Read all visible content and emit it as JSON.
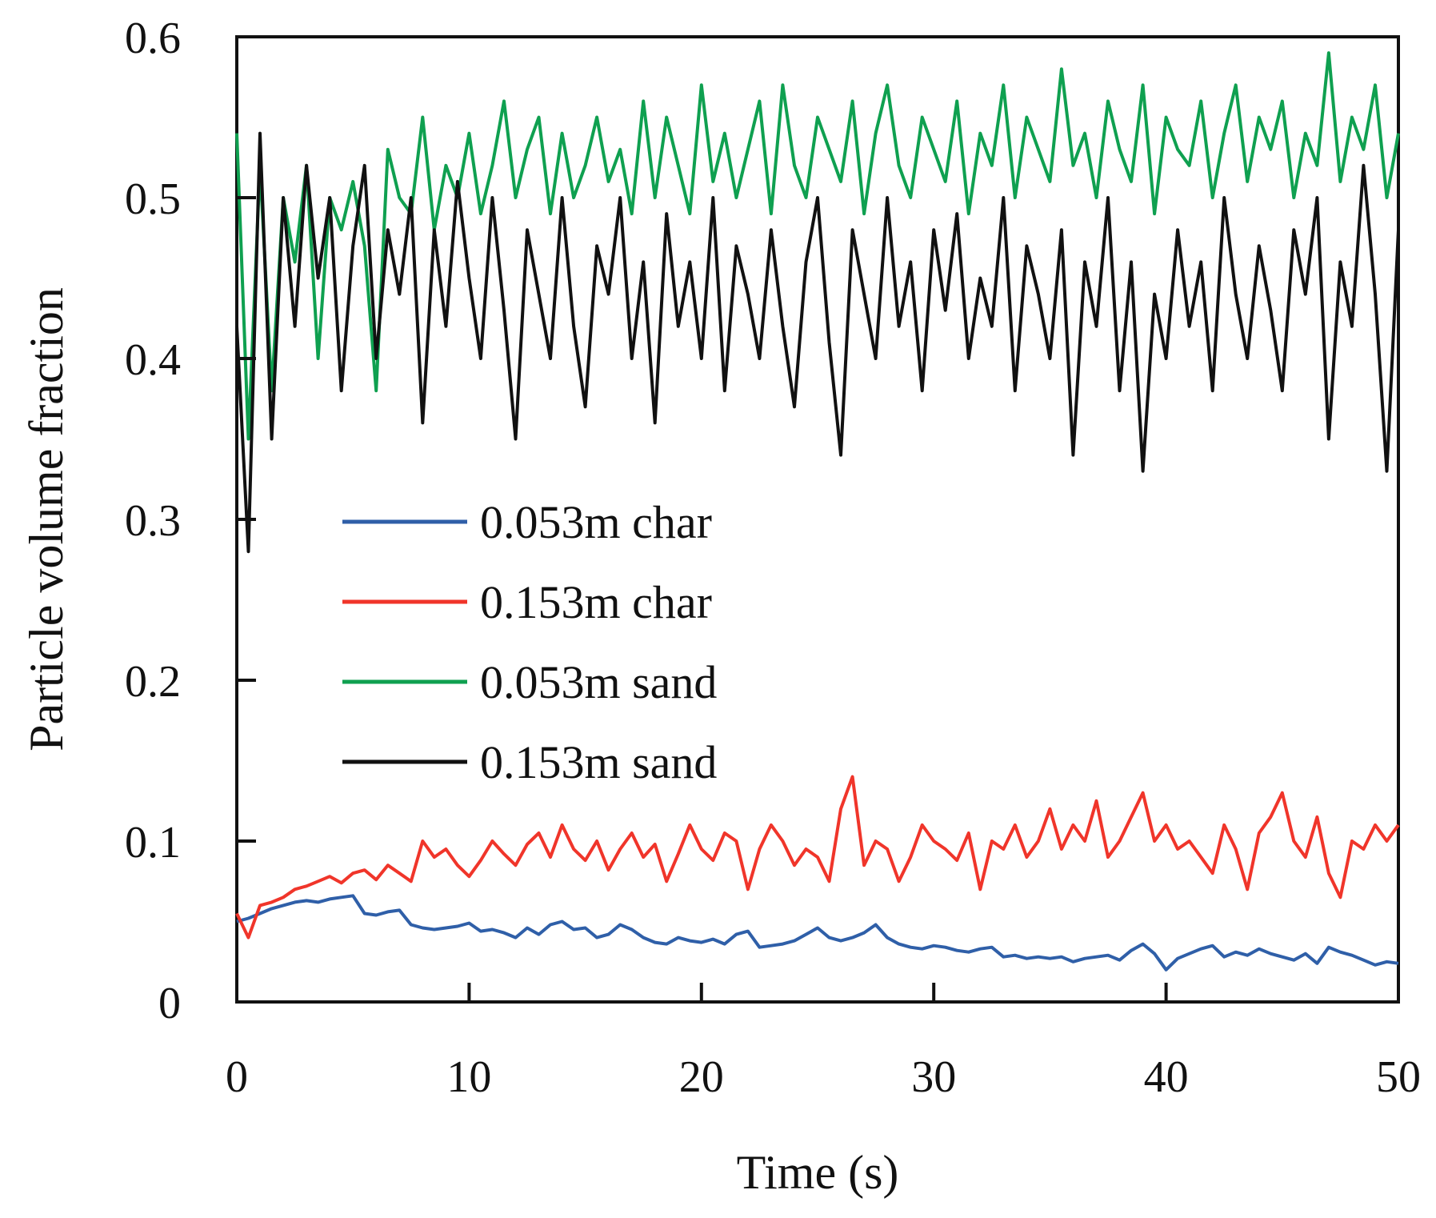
{
  "chart_data": {
    "type": "line",
    "xlabel": "Time (s)",
    "ylabel": "Particle volume fraction",
    "xlim": [
      0,
      50
    ],
    "ylim": [
      0,
      0.6
    ],
    "xticks": [
      "0",
      "10",
      "20",
      "30",
      "40",
      "50"
    ],
    "yticks": [
      "0",
      "0.1",
      "0.2",
      "0.3",
      "0.4",
      "0.5",
      "0.6"
    ],
    "grid": false,
    "legend_position": "center-left",
    "series": [
      {
        "name": "0.053m char",
        "color": "#2f5fa8",
        "x": [
          0,
          0.5,
          1,
          1.5,
          2,
          2.5,
          3,
          3.5,
          4,
          4.5,
          5,
          5.5,
          6,
          6.5,
          7,
          7.5,
          8,
          8.5,
          9,
          9.5,
          10,
          10.5,
          11,
          11.5,
          12,
          12.5,
          13,
          13.5,
          14,
          14.5,
          15,
          15.5,
          16,
          16.5,
          17,
          17.5,
          18,
          18.5,
          19,
          19.5,
          20,
          20.5,
          21,
          21.5,
          22,
          22.5,
          23,
          23.5,
          24,
          24.5,
          25,
          25.5,
          26,
          26.5,
          27,
          27.5,
          28,
          28.5,
          29,
          29.5,
          30,
          30.5,
          31,
          31.5,
          32,
          32.5,
          33,
          33.5,
          34,
          34.5,
          35,
          35.5,
          36,
          36.5,
          37,
          37.5,
          38,
          38.5,
          39,
          39.5,
          40,
          40.5,
          41,
          41.5,
          42,
          42.5,
          43,
          43.5,
          44,
          44.5,
          45,
          45.5,
          46,
          46.5,
          47,
          47.5,
          48,
          48.5,
          49,
          49.5,
          50
        ],
        "y": [
          0.05,
          0.052,
          0.055,
          0.058,
          0.06,
          0.062,
          0.063,
          0.062,
          0.064,
          0.065,
          0.066,
          0.055,
          0.054,
          0.056,
          0.057,
          0.048,
          0.046,
          0.045,
          0.046,
          0.047,
          0.049,
          0.044,
          0.045,
          0.043,
          0.04,
          0.046,
          0.042,
          0.048,
          0.05,
          0.045,
          0.046,
          0.04,
          0.042,
          0.048,
          0.045,
          0.04,
          0.037,
          0.036,
          0.04,
          0.038,
          0.037,
          0.039,
          0.036,
          0.042,
          0.044,
          0.034,
          0.035,
          0.036,
          0.038,
          0.042,
          0.046,
          0.04,
          0.038,
          0.04,
          0.043,
          0.048,
          0.04,
          0.036,
          0.034,
          0.033,
          0.035,
          0.034,
          0.032,
          0.031,
          0.033,
          0.034,
          0.028,
          0.029,
          0.027,
          0.028,
          0.027,
          0.028,
          0.025,
          0.027,
          0.028,
          0.029,
          0.026,
          0.032,
          0.036,
          0.03,
          0.02,
          0.027,
          0.03,
          0.033,
          0.035,
          0.028,
          0.031,
          0.029,
          0.033,
          0.03,
          0.028,
          0.026,
          0.03,
          0.024,
          0.034,
          0.031,
          0.029,
          0.026,
          0.023,
          0.025,
          0.024
        ]
      },
      {
        "name": "0.153m char",
        "color": "#f0352a",
        "x": [
          0,
          0.5,
          1,
          1.5,
          2,
          2.5,
          3,
          3.5,
          4,
          4.5,
          5,
          5.5,
          6,
          6.5,
          7,
          7.5,
          8,
          8.5,
          9,
          9.5,
          10,
          10.5,
          11,
          11.5,
          12,
          12.5,
          13,
          13.5,
          14,
          14.5,
          15,
          15.5,
          16,
          16.5,
          17,
          17.5,
          18,
          18.5,
          19,
          19.5,
          20,
          20.5,
          21,
          21.5,
          22,
          22.5,
          23,
          23.5,
          24,
          24.5,
          25,
          25.5,
          26,
          26.5,
          27,
          27.5,
          28,
          28.5,
          29,
          29.5,
          30,
          30.5,
          31,
          31.5,
          32,
          32.5,
          33,
          33.5,
          34,
          34.5,
          35,
          35.5,
          36,
          36.5,
          37,
          37.5,
          38,
          38.5,
          39,
          39.5,
          40,
          40.5,
          41,
          41.5,
          42,
          42.5,
          43,
          43.5,
          44,
          44.5,
          45,
          45.5,
          46,
          46.5,
          47,
          47.5,
          48,
          48.5,
          49,
          49.5,
          50
        ],
        "y": [
          0.055,
          0.04,
          0.06,
          0.062,
          0.065,
          0.07,
          0.072,
          0.075,
          0.078,
          0.074,
          0.08,
          0.082,
          0.076,
          0.085,
          0.08,
          0.075,
          0.1,
          0.09,
          0.095,
          0.085,
          0.078,
          0.088,
          0.1,
          0.092,
          0.085,
          0.098,
          0.105,
          0.09,
          0.11,
          0.095,
          0.088,
          0.1,
          0.082,
          0.095,
          0.105,
          0.09,
          0.098,
          0.075,
          0.092,
          0.11,
          0.095,
          0.088,
          0.105,
          0.1,
          0.07,
          0.095,
          0.11,
          0.1,
          0.085,
          0.095,
          0.09,
          0.075,
          0.12,
          0.14,
          0.085,
          0.1,
          0.095,
          0.075,
          0.09,
          0.11,
          0.1,
          0.095,
          0.088,
          0.105,
          0.07,
          0.1,
          0.095,
          0.11,
          0.09,
          0.1,
          0.12,
          0.095,
          0.11,
          0.1,
          0.125,
          0.09,
          0.1,
          0.115,
          0.13,
          0.1,
          0.11,
          0.095,
          0.1,
          0.09,
          0.08,
          0.11,
          0.095,
          0.07,
          0.105,
          0.115,
          0.13,
          0.1,
          0.09,
          0.115,
          0.08,
          0.065,
          0.1,
          0.095,
          0.11,
          0.1,
          0.11
        ]
      },
      {
        "name": "0.053m sand",
        "color": "#0fa050",
        "x": [
          0,
          0.5,
          1,
          1.5,
          2,
          2.5,
          3,
          3.5,
          4,
          4.5,
          5,
          5.5,
          6,
          6.5,
          7,
          7.5,
          8,
          8.5,
          9,
          9.5,
          10,
          10.5,
          11,
          11.5,
          12,
          12.5,
          13,
          13.5,
          14,
          14.5,
          15,
          15.5,
          16,
          16.5,
          17,
          17.5,
          18,
          18.5,
          19,
          19.5,
          20,
          20.5,
          21,
          21.5,
          22,
          22.5,
          23,
          23.5,
          24,
          24.5,
          25,
          25.5,
          26,
          26.5,
          27,
          27.5,
          28,
          28.5,
          29,
          29.5,
          30,
          30.5,
          31,
          31.5,
          32,
          32.5,
          33,
          33.5,
          34,
          34.5,
          35,
          35.5,
          36,
          36.5,
          37,
          37.5,
          38,
          38.5,
          39,
          39.5,
          40,
          40.5,
          41,
          41.5,
          42,
          42.5,
          43,
          43.5,
          44,
          44.5,
          45,
          45.5,
          46,
          46.5,
          47,
          47.5,
          48,
          48.5,
          49,
          49.5,
          50
        ],
        "y": [
          0.54,
          0.35,
          0.52,
          0.38,
          0.5,
          0.46,
          0.52,
          0.4,
          0.5,
          0.48,
          0.51,
          0.47,
          0.38,
          0.53,
          0.5,
          0.49,
          0.55,
          0.48,
          0.52,
          0.5,
          0.54,
          0.49,
          0.52,
          0.56,
          0.5,
          0.53,
          0.55,
          0.49,
          0.54,
          0.5,
          0.52,
          0.55,
          0.51,
          0.53,
          0.49,
          0.56,
          0.5,
          0.55,
          0.52,
          0.49,
          0.57,
          0.51,
          0.54,
          0.5,
          0.53,
          0.56,
          0.49,
          0.57,
          0.52,
          0.5,
          0.55,
          0.53,
          0.51,
          0.56,
          0.49,
          0.54,
          0.57,
          0.52,
          0.5,
          0.55,
          0.53,
          0.51,
          0.56,
          0.49,
          0.54,
          0.52,
          0.57,
          0.5,
          0.55,
          0.53,
          0.51,
          0.58,
          0.52,
          0.54,
          0.5,
          0.56,
          0.53,
          0.51,
          0.57,
          0.49,
          0.55,
          0.53,
          0.52,
          0.56,
          0.5,
          0.54,
          0.57,
          0.51,
          0.55,
          0.53,
          0.56,
          0.5,
          0.54,
          0.52,
          0.59,
          0.51,
          0.55,
          0.53,
          0.57,
          0.5,
          0.54
        ]
      },
      {
        "name": "0.153m sand",
        "color": "#111111",
        "x": [
          0,
          0.5,
          1,
          1.5,
          2,
          2.5,
          3,
          3.5,
          4,
          4.5,
          5,
          5.5,
          6,
          6.5,
          7,
          7.5,
          8,
          8.5,
          9,
          9.5,
          10,
          10.5,
          11,
          11.5,
          12,
          12.5,
          13,
          13.5,
          14,
          14.5,
          15,
          15.5,
          16,
          16.5,
          17,
          17.5,
          18,
          18.5,
          19,
          19.5,
          20,
          20.5,
          21,
          21.5,
          22,
          22.5,
          23,
          23.5,
          24,
          24.5,
          25,
          25.5,
          26,
          26.5,
          27,
          27.5,
          28,
          28.5,
          29,
          29.5,
          30,
          30.5,
          31,
          31.5,
          32,
          32.5,
          33,
          33.5,
          34,
          34.5,
          35,
          35.5,
          36,
          36.5,
          37,
          37.5,
          38,
          38.5,
          39,
          39.5,
          40,
          40.5,
          41,
          41.5,
          42,
          42.5,
          43,
          43.5,
          44,
          44.5,
          45,
          45.5,
          46,
          46.5,
          47,
          47.5,
          48,
          48.5,
          49,
          49.5,
          50
        ],
        "y": [
          0.42,
          0.28,
          0.54,
          0.35,
          0.5,
          0.42,
          0.52,
          0.45,
          0.5,
          0.38,
          0.47,
          0.52,
          0.4,
          0.48,
          0.44,
          0.5,
          0.36,
          0.48,
          0.42,
          0.51,
          0.45,
          0.4,
          0.5,
          0.43,
          0.35,
          0.48,
          0.44,
          0.4,
          0.5,
          0.42,
          0.37,
          0.47,
          0.44,
          0.5,
          0.4,
          0.46,
          0.36,
          0.49,
          0.42,
          0.46,
          0.4,
          0.5,
          0.38,
          0.47,
          0.44,
          0.4,
          0.48,
          0.42,
          0.37,
          0.46,
          0.5,
          0.41,
          0.34,
          0.48,
          0.44,
          0.4,
          0.5,
          0.42,
          0.46,
          0.38,
          0.48,
          0.43,
          0.49,
          0.4,
          0.45,
          0.42,
          0.5,
          0.38,
          0.47,
          0.44,
          0.4,
          0.48,
          0.34,
          0.46,
          0.42,
          0.5,
          0.38,
          0.46,
          0.33,
          0.44,
          0.4,
          0.48,
          0.42,
          0.46,
          0.38,
          0.5,
          0.44,
          0.4,
          0.47,
          0.43,
          0.38,
          0.48,
          0.44,
          0.5,
          0.35,
          0.46,
          0.42,
          0.52,
          0.44,
          0.33,
          0.48
        ]
      }
    ]
  }
}
